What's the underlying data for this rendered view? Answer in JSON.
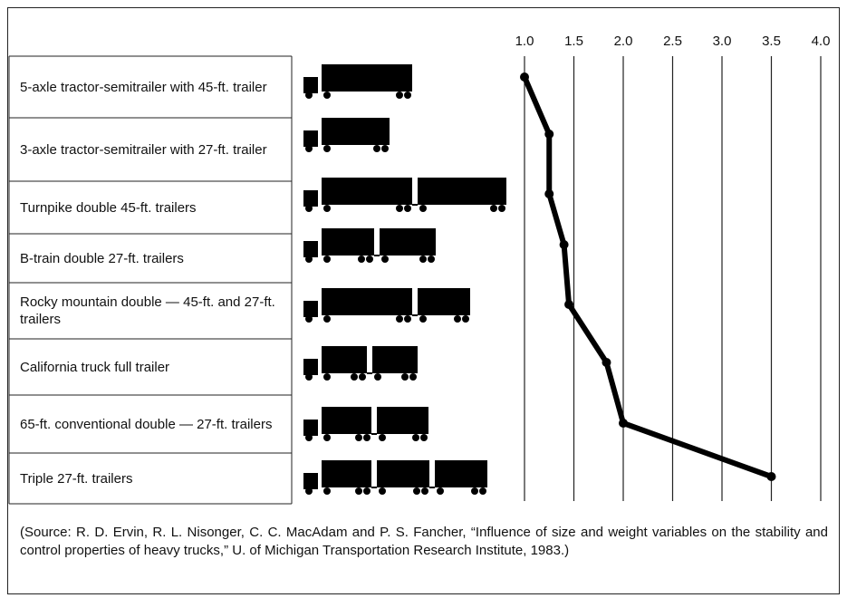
{
  "chart_data": {
    "type": "line",
    "categories": [
      "5-axle tractor-semitrailer with 45-ft. trailer",
      "3-axle tractor-semitrailer with 27-ft. trailer",
      "Turnpike double 45-ft. trailers",
      "B-train double 27-ft. trailers",
      "Rocky mountain double — 45-ft. and 27-ft. trailers",
      "California truck full trailer",
      "65-ft. conventional double — 27-ft. trailers",
      "Triple 27-ft. trailers"
    ],
    "values": [
      1.0,
      1.25,
      1.25,
      1.4,
      1.45,
      1.83,
      2.0,
      3.5
    ],
    "color": "#000000",
    "xlim": [
      1,
      4
    ],
    "xticks": [
      {
        "value": 1,
        "label": "1.0"
      },
      1.5,
      {
        "value": 2,
        "label": "2.0"
      },
      2.5,
      {
        "value": 3,
        "label": "3.0"
      },
      3.5,
      {
        "value": 4,
        "label": "4.0"
      }
    ],
    "grid": true,
    "source": "(Source: R. D. Ervin, R. L. Nisonger, C. C. MacAdam and P. S. Fancher, “Influence of size and weight variables on the stability and control properties of heavy trucks,” U. of Michigan Transportation Research Institute, 1983.)"
  }
}
